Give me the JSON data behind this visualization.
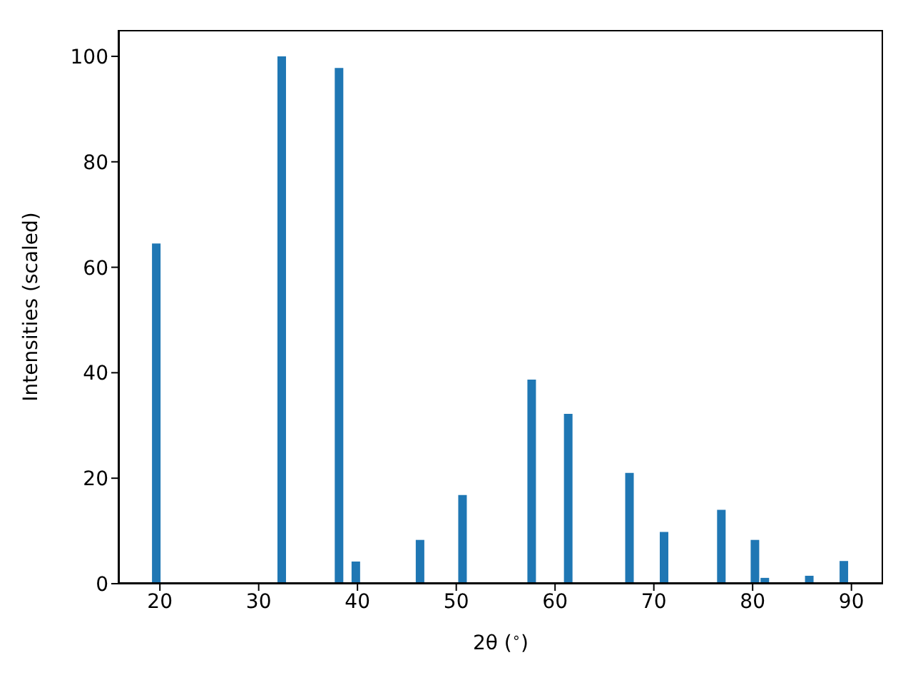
{
  "chart_data": {
    "type": "bar",
    "xlabel": "2θ ($^{∘}$)",
    "ylabel": "Intensities (scaled)",
    "x": [
      19.7,
      32.4,
      38.2,
      39.9,
      46.4,
      50.7,
      57.7,
      61.4,
      67.6,
      71.1,
      76.9,
      80.3,
      81.3,
      85.8,
      89.3
    ],
    "values": [
      64.5,
      100,
      97.8,
      4.2,
      8.3,
      16.8,
      38.7,
      32.2,
      21,
      9.8,
      14,
      8.3,
      1.1,
      1.5,
      4.3
    ],
    "color": "#1f77b4",
    "xlim": [
      15.8,
      93.2
    ],
    "xticks": [
      20,
      30,
      40,
      50,
      60,
      70,
      80,
      90
    ],
    "ylim": [
      0,
      105
    ],
    "yticks": [
      0,
      20,
      40,
      60,
      80,
      100
    ],
    "grid": false,
    "legend": false
  }
}
